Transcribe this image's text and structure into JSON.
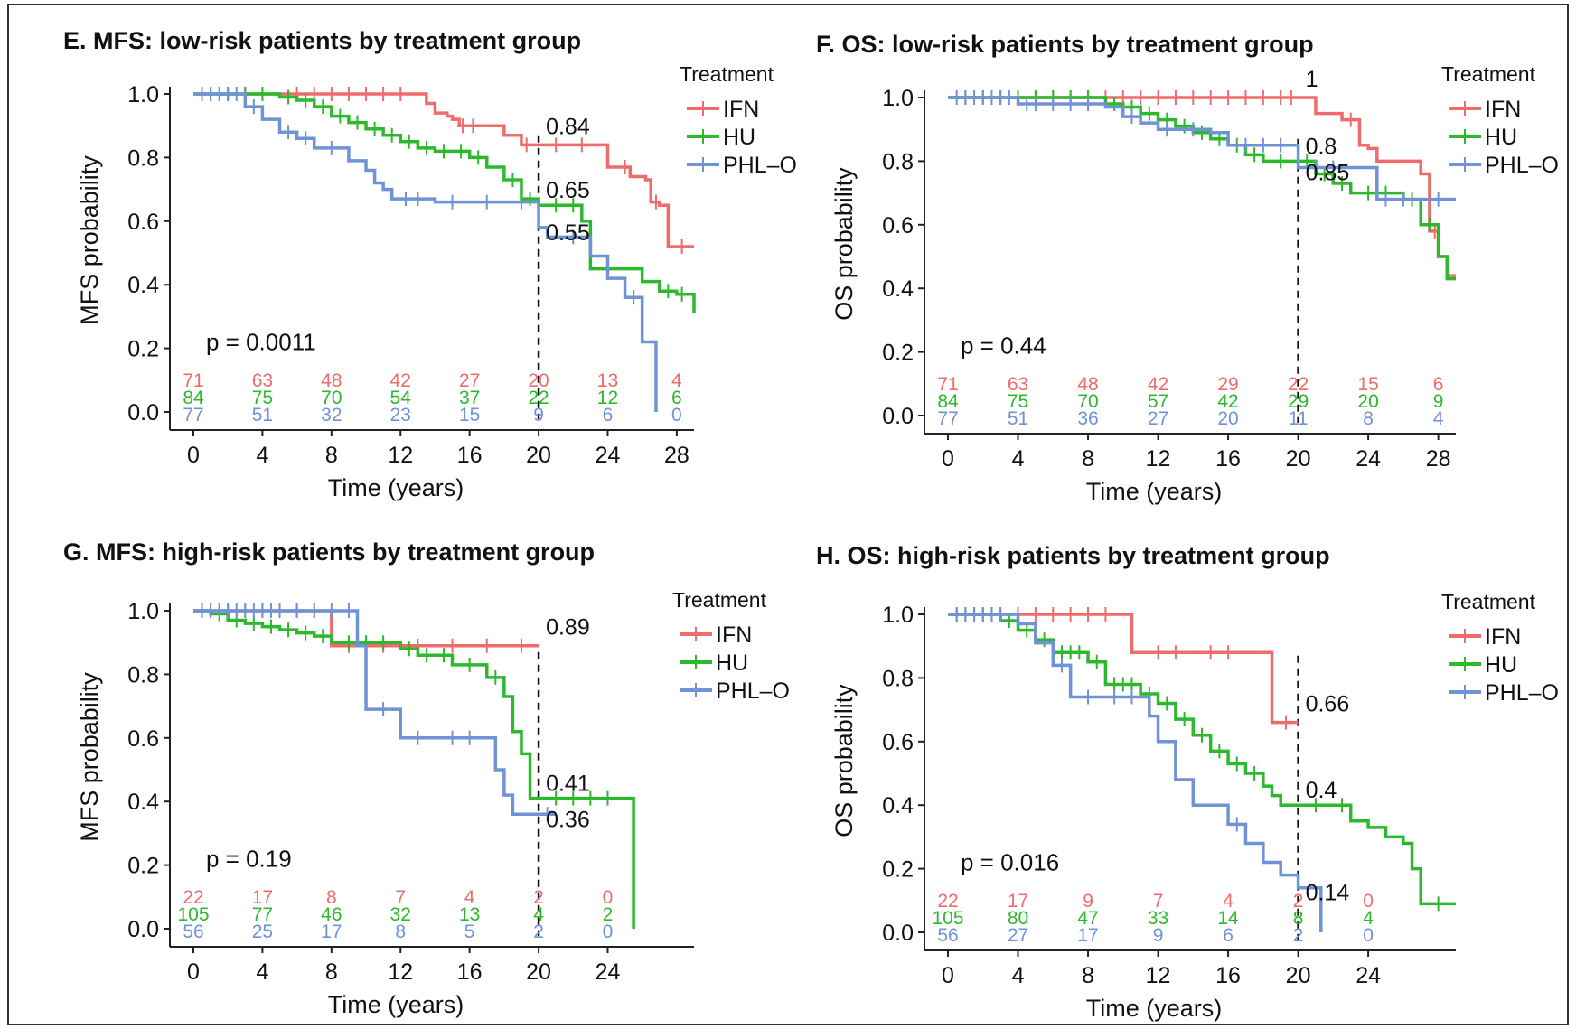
{
  "colors": {
    "IFN": "#ee6c6c",
    "HU": "#2db82d",
    "PHL-O": "#6f93d6",
    "axis": "#222222",
    "text": "#111111"
  },
  "chart_data": [
    {
      "type": "line",
      "subtype": "kaplan-meier",
      "title": "E. MFS: low-risk patients by treatment group",
      "xlabel": "Time (years)",
      "ylabel": "MFS probability",
      "xlim": [
        0,
        29
      ],
      "ylim": [
        0,
        1
      ],
      "xticks": [
        "0",
        "4",
        "8",
        "12",
        "16",
        "20",
        "24",
        "28"
      ],
      "yticks": [
        "0.0",
        "0.2",
        "0.4",
        "0.6",
        "0.8",
        "1.0"
      ],
      "grid": false,
      "legend": {
        "title": "Treatment",
        "position": "top-right",
        "entries": [
          "IFN",
          "HU",
          "PHL–O"
        ]
      },
      "pvalue": "p = 0.0011",
      "reference_x": 20,
      "series": [
        {
          "name": "IFN",
          "color": "#ee6c6c",
          "x": [
            0,
            13,
            13.5,
            14,
            14.7,
            15,
            15.4,
            17.5,
            18,
            19,
            20,
            23.5,
            24,
            25.3,
            26.2,
            26.5,
            27,
            27.5,
            29
          ],
          "y": [
            1,
            1,
            0.97,
            0.94,
            0.93,
            0.92,
            0.9,
            0.9,
            0.87,
            0.84,
            0.84,
            0.84,
            0.77,
            0.74,
            0.73,
            0.66,
            0.65,
            0.52,
            0.52
          ],
          "censor_x": [
            1,
            2,
            3,
            4,
            6,
            7,
            8,
            9,
            10,
            11,
            12,
            15.6,
            16.2,
            19.3,
            21,
            22.5,
            25,
            26.8,
            28.3
          ],
          "label": "0.84"
        },
        {
          "name": "HU",
          "color": "#2db82d",
          "x": [
            0,
            5,
            6,
            7,
            8,
            9,
            10,
            11,
            12,
            13,
            14,
            16,
            17,
            18,
            19,
            20,
            22.5,
            23,
            25,
            26,
            27,
            28,
            29
          ],
          "y": [
            1,
            0.99,
            0.98,
            0.96,
            0.93,
            0.91,
            0.89,
            0.87,
            0.85,
            0.83,
            0.82,
            0.8,
            0.77,
            0.73,
            0.67,
            0.65,
            0.6,
            0.45,
            0.45,
            0.41,
            0.38,
            0.37,
            0.31
          ],
          "censor_x": [
            1,
            2,
            3,
            4,
            5.5,
            6.5,
            7.5,
            8.5,
            9.5,
            10.5,
            11.5,
            12.5,
            13.5,
            14.5,
            15.5,
            16.5,
            18.5,
            19.5,
            21,
            22,
            24,
            27.5,
            28.3
          ],
          "label": "0.65"
        },
        {
          "name": "PHL–O",
          "color": "#6f93d6",
          "x": [
            0,
            3,
            4,
            5,
            6,
            7,
            9,
            10,
            10.5,
            11,
            11.5,
            12,
            14,
            19.5,
            20,
            20.5,
            23,
            24,
            25,
            26,
            26.8
          ],
          "y": [
            1,
            0.96,
            0.92,
            0.88,
            0.86,
            0.83,
            0.79,
            0.76,
            0.72,
            0.7,
            0.67,
            0.67,
            0.66,
            0.66,
            0.58,
            0.55,
            0.49,
            0.42,
            0.36,
            0.22,
            0
          ],
          "censor_x": [
            0.5,
            1,
            1.5,
            2,
            2.5,
            3.5,
            5.5,
            6.5,
            8,
            12.3,
            13,
            15,
            17,
            19,
            22,
            25.5
          ],
          "label": "0.55"
        }
      ],
      "risk_table": {
        "IFN": [
          "71",
          "63",
          "48",
          "42",
          "27",
          "20",
          "13",
          "4"
        ],
        "HU": [
          "84",
          "75",
          "70",
          "54",
          "37",
          "22",
          "12",
          "6"
        ],
        "PHL–O": [
          "77",
          "51",
          "32",
          "23",
          "15",
          "9",
          "6",
          "0"
        ]
      }
    },
    {
      "type": "line",
      "subtype": "kaplan-meier",
      "title": "F. OS: low-risk patients by treatment group",
      "xlabel": "Time (years)",
      "ylabel": "OS probability",
      "xlim": [
        0,
        29
      ],
      "ylim": [
        0,
        1
      ],
      "xticks": [
        "0",
        "4",
        "8",
        "12",
        "16",
        "20",
        "24",
        "28"
      ],
      "yticks": [
        "0.0",
        "0.2",
        "0.4",
        "0.6",
        "0.8",
        "1.0"
      ],
      "grid": false,
      "legend": {
        "title": "Treatment",
        "position": "top-right",
        "entries": [
          "IFN",
          "HU",
          "PHL–O"
        ]
      },
      "pvalue": "p = 0.44",
      "reference_x": 20,
      "series": [
        {
          "name": "IFN",
          "color": "#ee6c6c",
          "x": [
            0,
            20,
            21,
            22.5,
            23.5,
            24,
            24.5,
            27,
            27.5,
            28,
            28.5,
            29
          ],
          "y": [
            1,
            1,
            0.95,
            0.93,
            0.85,
            0.84,
            0.8,
            0.76,
            0.58,
            0.5,
            0.44,
            0.44
          ],
          "censor_x": [
            1,
            2,
            3,
            4,
            5,
            6,
            7,
            8,
            9,
            10,
            11,
            12,
            13,
            14,
            15,
            16,
            17,
            18,
            19,
            19.6,
            23,
            27.8
          ],
          "label": "1"
        },
        {
          "name": "HU",
          "color": "#2db82d",
          "x": [
            0,
            9,
            10,
            11,
            12,
            13,
            14,
            15,
            16,
            17,
            18,
            20,
            21,
            22,
            23,
            26,
            27,
            28,
            28.5,
            29
          ],
          "y": [
            1,
            0.98,
            0.97,
            0.95,
            0.93,
            0.91,
            0.89,
            0.87,
            0.85,
            0.82,
            0.8,
            0.8,
            0.76,
            0.73,
            0.7,
            0.68,
            0.6,
            0.5,
            0.43,
            0.43
          ],
          "censor_x": [
            1,
            2,
            3,
            4,
            5,
            6,
            7,
            8,
            9.5,
            10.5,
            11.5,
            12.5,
            13.5,
            14.5,
            15.5,
            16.5,
            17.5,
            19,
            20.5,
            21.5,
            22.5,
            24,
            25,
            26.5,
            27.5
          ],
          "label": "0.8"
        },
        {
          "name": "PHL–O",
          "color": "#6f93d6",
          "x": [
            0,
            4,
            9,
            10,
            11,
            12,
            15,
            16,
            20,
            24,
            24.5,
            29
          ],
          "y": [
            1,
            0.98,
            0.97,
            0.94,
            0.92,
            0.9,
            0.89,
            0.85,
            0.78,
            0.78,
            0.68,
            0.68
          ],
          "censor_x": [
            0.5,
            1,
            1.5,
            2,
            2.5,
            3,
            3.5,
            4.5,
            5,
            6,
            7,
            8,
            10.5,
            12.5,
            14,
            17,
            18,
            19,
            21,
            22,
            25,
            26,
            28
          ],
          "label": "0.85"
        }
      ],
      "risk_table": {
        "IFN": [
          "71",
          "63",
          "48",
          "42",
          "29",
          "22",
          "15",
          "6"
        ],
        "HU": [
          "84",
          "75",
          "70",
          "57",
          "42",
          "29",
          "20",
          "9"
        ],
        "PHL–O": [
          "77",
          "51",
          "36",
          "27",
          "20",
          "11",
          "8",
          "4"
        ]
      }
    },
    {
      "type": "line",
      "subtype": "kaplan-meier",
      "title": "G. MFS: high-risk patients by treatment group",
      "xlabel": "Time (years)",
      "ylabel": "MFS probability",
      "xlim": [
        0,
        29
      ],
      "ylim": [
        0,
        1
      ],
      "xticks": [
        "0",
        "4",
        "8",
        "12",
        "16",
        "20",
        "24"
      ],
      "yticks": [
        "0.0",
        "0.2",
        "0.4",
        "0.6",
        "0.8",
        "1.0"
      ],
      "grid": false,
      "legend": {
        "title": "Treatment",
        "position": "top-right",
        "entries": [
          "IFN",
          "HU",
          "PHL–O"
        ]
      },
      "pvalue": "p = 0.19",
      "reference_x": 20,
      "series": [
        {
          "name": "IFN",
          "color": "#ee6c6c",
          "x": [
            0,
            7.5,
            8,
            12,
            20
          ],
          "y": [
            1,
            1,
            0.89,
            0.89,
            0.89
          ],
          "censor_x": [
            1,
            2,
            3,
            4,
            5,
            6,
            7,
            9,
            11,
            13,
            15,
            17,
            19
          ],
          "label": "0.89"
        },
        {
          "name": "HU",
          "color": "#2db82d",
          "x": [
            0,
            1,
            2,
            3,
            4,
            5,
            6,
            7,
            8,
            12,
            13,
            15,
            17,
            18,
            18.5,
            19,
            19.5,
            25.5,
            25.5
          ],
          "y": [
            1,
            0.99,
            0.97,
            0.96,
            0.95,
            0.94,
            0.93,
            0.92,
            0.9,
            0.88,
            0.86,
            0.83,
            0.79,
            0.73,
            0.62,
            0.55,
            0.41,
            0.41,
            0
          ],
          "censor_x": [
            0.5,
            1.5,
            2.5,
            3.5,
            4.5,
            5.5,
            6.5,
            7.5,
            9,
            10,
            11,
            12.5,
            13.5,
            14.5,
            16,
            17.5,
            21,
            22,
            23,
            24
          ],
          "label": "0.41"
        },
        {
          "name": "PHL–O",
          "color": "#6f93d6",
          "x": [
            0,
            9.5,
            10,
            12,
            14,
            17,
            17.5,
            18,
            18.5,
            21
          ],
          "y": [
            1,
            0.89,
            0.69,
            0.6,
            0.6,
            0.6,
            0.5,
            0.42,
            0.36,
            0.36
          ],
          "censor_x": [
            0.5,
            1,
            1.5,
            2,
            2.5,
            3,
            3.5,
            4,
            4.5,
            5,
            6,
            7,
            8,
            9,
            11,
            13,
            15,
            16,
            20.5
          ],
          "label": "0.36"
        }
      ],
      "risk_table": {
        "IFN": [
          "22",
          "17",
          "8",
          "7",
          "4",
          "2",
          "0"
        ],
        "HU": [
          "105",
          "77",
          "46",
          "32",
          "13",
          "4",
          "2"
        ],
        "PHL–O": [
          "56",
          "25",
          "17",
          "8",
          "5",
          "2",
          "0"
        ]
      }
    },
    {
      "type": "line",
      "subtype": "kaplan-meier",
      "title": "H. OS: high-risk patients by treatment group",
      "xlabel": "Time (years)",
      "ylabel": "OS probability",
      "xlim": [
        0,
        29
      ],
      "ylim": [
        0,
        1
      ],
      "xticks": [
        "0",
        "4",
        "8",
        "12",
        "16",
        "20",
        "24"
      ],
      "yticks": [
        "0.0",
        "0.2",
        "0.4",
        "0.6",
        "0.8",
        "1.0"
      ],
      "grid": false,
      "legend": {
        "title": "Treatment",
        "position": "top-right",
        "entries": [
          "IFN",
          "HU",
          "PHL–O"
        ]
      },
      "pvalue": "p = 0.016",
      "reference_x": 20,
      "series": [
        {
          "name": "IFN",
          "color": "#ee6c6c",
          "x": [
            0,
            10,
            10.5,
            18,
            18.5,
            20
          ],
          "y": [
            1,
            1,
            0.88,
            0.88,
            0.66,
            0.66
          ],
          "censor_x": [
            0.5,
            1,
            1.5,
            2,
            3,
            4,
            5,
            6,
            7,
            8,
            9,
            12,
            13,
            15,
            16,
            19.3
          ],
          "label": "0.66"
        },
        {
          "name": "HU",
          "color": "#2db82d",
          "x": [
            0,
            3,
            4,
            5,
            6,
            8,
            9,
            11,
            12,
            13,
            14,
            15,
            16,
            17,
            18,
            18.5,
            19,
            22,
            23,
            24,
            25,
            26,
            26.5,
            27,
            29
          ],
          "y": [
            1,
            0.98,
            0.95,
            0.92,
            0.88,
            0.85,
            0.78,
            0.75,
            0.72,
            0.67,
            0.62,
            0.57,
            0.53,
            0.5,
            0.46,
            0.43,
            0.4,
            0.4,
            0.35,
            0.33,
            0.3,
            0.28,
            0.2,
            0.09,
            0.09
          ],
          "censor_x": [
            0.5,
            1,
            1.5,
            2,
            2.5,
            3.5,
            4.5,
            5.5,
            6.5,
            7,
            7.5,
            8.5,
            9.5,
            10,
            10.5,
            11.5,
            12.5,
            13.5,
            14.5,
            15.5,
            16.5,
            17.5,
            21,
            22.5,
            28
          ],
          "label": "0.4"
        },
        {
          "name": "PHL–O",
          "color": "#6f93d6",
          "x": [
            0,
            4,
            5,
            6,
            7,
            11,
            11.5,
            12,
            13,
            14,
            16,
            17,
            18,
            19,
            20,
            21,
            21.3
          ],
          "y": [
            1,
            0.97,
            0.91,
            0.84,
            0.74,
            0.74,
            0.68,
            0.6,
            0.48,
            0.4,
            0.34,
            0.28,
            0.22,
            0.18,
            0.14,
            0.14,
            0
          ],
          "censor_x": [
            0.5,
            1,
            1.5,
            2,
            2.5,
            3,
            6.5,
            8,
            9.5,
            10.5,
            16.5
          ],
          "label": "0.14"
        }
      ],
      "risk_table": {
        "IFN": [
          "22",
          "17",
          "9",
          "7",
          "4",
          "2",
          "0"
        ],
        "HU": [
          "105",
          "80",
          "47",
          "33",
          "14",
          "8",
          "4"
        ],
        "PHL–O": [
          "56",
          "27",
          "17",
          "9",
          "6",
          "2",
          "0"
        ]
      }
    }
  ]
}
